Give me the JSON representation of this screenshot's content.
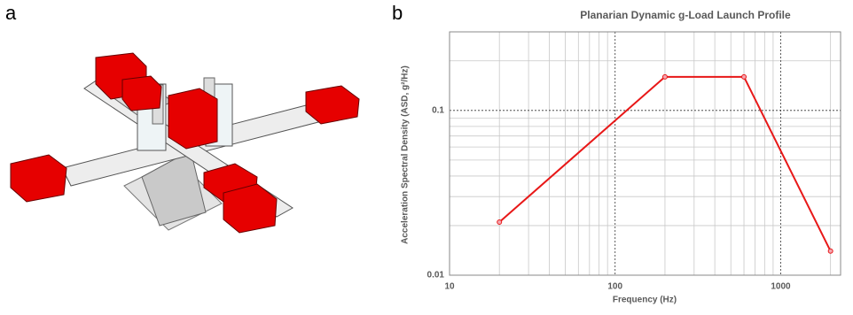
{
  "panel_labels": [
    "a",
    "b"
  ],
  "chart_data": {
    "type": "line",
    "title": "Planarian Dynamic g-Load Launch Profile",
    "x_label": "Frequency (Hz)",
    "y_label": "Acceleration Spectral Density (ASD, g²/Hz)",
    "x": [
      20,
      200,
      600,
      2000
    ],
    "values": [
      0.021,
      0.16,
      0.16,
      0.014
    ],
    "color": "#e81818",
    "xlim": [
      10,
      2300
    ],
    "ylim": [
      0.01,
      0.3
    ],
    "xticks": [
      10,
      100,
      1000
    ],
    "yticks": [
      0.01,
      0.1
    ],
    "log_x": true,
    "log_y": true,
    "grid": true
  }
}
